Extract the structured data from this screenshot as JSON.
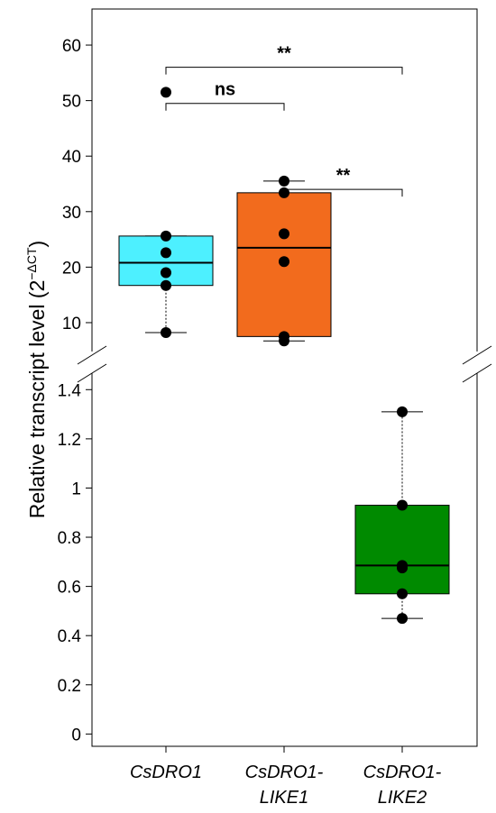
{
  "chart_data": {
    "type": "box",
    "ylabel": "Relative transcript level (2",
    "ylabel_superscript": "−ΔCT",
    "ylabel_close": ")",
    "y_axis_broken": true,
    "upper_segment": {
      "ylim": [
        3.5,
        66.5
      ],
      "ticks": [
        10,
        20,
        30,
        40,
        50,
        60
      ]
    },
    "lower_segment": {
      "ylim": [
        -0.05,
        1.5
      ],
      "ticks": [
        0,
        0.2,
        0.4,
        0.6,
        0.8,
        1,
        1.2,
        1.4
      ]
    },
    "categories": [
      {
        "lines": [
          "CsDRO1"
        ]
      },
      {
        "lines": [
          "CsDRO1-",
          "LIKE1"
        ]
      },
      {
        "lines": [
          "CsDRO1-",
          "LIKE2"
        ]
      }
    ],
    "boxes": [
      {
        "segment": "upper",
        "color": "#4DF0FF",
        "whisker_low": 8.2,
        "q1": 16.7,
        "median": 20.8,
        "q3": 25.6,
        "whisker_high": 25.6,
        "points": [
          51.5,
          25.6,
          22.6,
          19.0,
          16.7,
          8.2
        ]
      },
      {
        "segment": "upper",
        "color": "#F26B1D",
        "whisker_low": 6.7,
        "q1": 7.5,
        "median": 23.5,
        "q3": 33.4,
        "whisker_high": 35.5,
        "points": [
          35.5,
          33.4,
          26.0,
          21.0,
          7.5,
          6.7
        ]
      },
      {
        "segment": "lower",
        "color": "#008A00",
        "whisker_low": 0.47,
        "q1": 0.57,
        "median": 0.685,
        "q3": 0.93,
        "whisker_high": 1.31,
        "points": [
          1.31,
          0.93,
          0.685,
          0.675,
          0.57,
          0.47
        ]
      }
    ],
    "significance": [
      {
        "from": 0,
        "to": 2,
        "label": "**",
        "y": 56
      },
      {
        "from": 0,
        "to": 1,
        "label": "ns",
        "y": 49.5
      },
      {
        "from": 1,
        "to": 2,
        "label": "**",
        "y": 34
      }
    ],
    "grid": false,
    "legend": "none"
  }
}
